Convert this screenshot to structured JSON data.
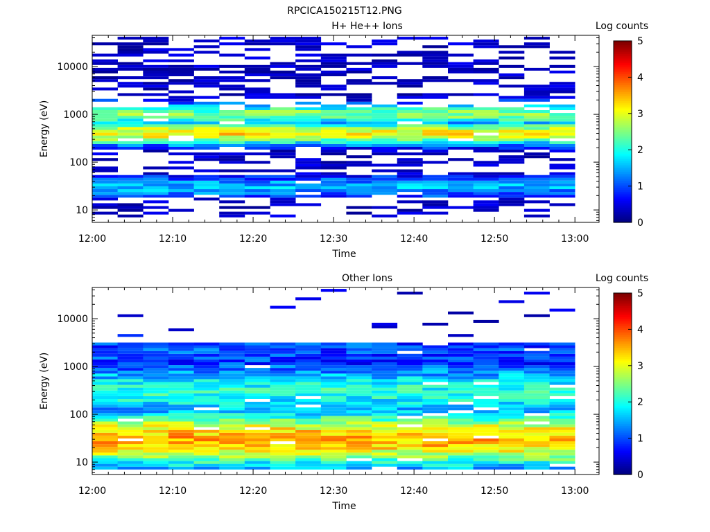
{
  "figure_title": "RPCICA150215T12.PNG",
  "chart_data": [
    {
      "type": "heatmap",
      "title": "H+ He++ Ions",
      "xlabel": "Time",
      "ylabel": "Energy (eV)",
      "x_ticks": [
        "12:00",
        "12:10",
        "12:20",
        "12:30",
        "12:40",
        "12:50",
        "13:00"
      ],
      "x_range_minutes": [
        0,
        63
      ],
      "y_ticks": [
        "10",
        "100",
        "1000",
        "10000"
      ],
      "y_scale": "log",
      "y_range": [
        5.5,
        45000
      ],
      "colorbar": {
        "label": "Log counts",
        "ticks": [
          "0",
          "1",
          "2",
          "3",
          "4",
          "5"
        ],
        "range": [
          0,
          5
        ]
      },
      "time_bins": 19,
      "energy_bins": 64,
      "band_peaks": [
        {
          "energy_ev": 1000,
          "log_counts": 2.5
        },
        {
          "energy_ev": 400,
          "log_counts": 3.2
        },
        {
          "energy_ev": 30,
          "log_counts": 1.5
        }
      ]
    },
    {
      "type": "heatmap",
      "title": "Other Ions",
      "xlabel": "Time",
      "ylabel": "Energy (eV)",
      "x_ticks": [
        "12:00",
        "12:10",
        "12:20",
        "12:30",
        "12:40",
        "12:50",
        "13:00"
      ],
      "x_range_minutes": [
        0,
        63
      ],
      "y_ticks": [
        "10",
        "100",
        "1000",
        "10000"
      ],
      "y_scale": "log",
      "y_range": [
        5.5,
        45000
      ],
      "colorbar": {
        "label": "Log counts",
        "ticks": [
          "0",
          "1",
          "2",
          "3",
          "4",
          "5"
        ],
        "range": [
          0,
          5
        ]
      },
      "time_bins": 19,
      "energy_bins": 64,
      "band_peaks": [
        {
          "energy_ev": 30,
          "log_counts": 3.5
        },
        {
          "energy_ev": 300,
          "log_counts": 2.0
        },
        {
          "energy_ev": 2000,
          "log_counts": 1.0
        }
      ]
    }
  ]
}
